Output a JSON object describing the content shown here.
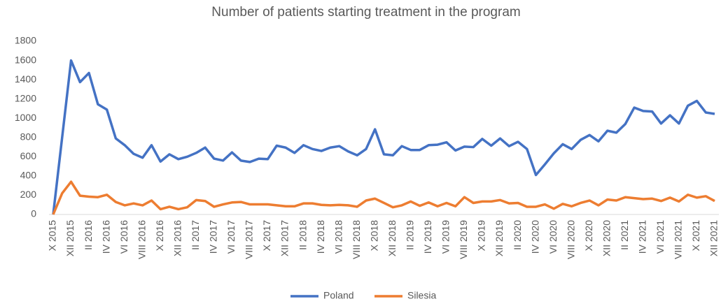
{
  "chart_data": {
    "type": "line",
    "title": "Number of patients starting treatment in the program",
    "categories": [
      "X 2015",
      null,
      "XII 2015",
      null,
      "II 2016",
      null,
      "IV 2016",
      null,
      "VI 2016",
      null,
      "VIII 2016",
      null,
      "X 2016",
      null,
      "XII 2016",
      null,
      "II 2017",
      null,
      "IV 2017",
      null,
      "VI 2017",
      null,
      "VIII 2017",
      null,
      "X 2017",
      null,
      "XII 2017",
      null,
      "II 2018",
      null,
      "IV 2018",
      null,
      "VI 2018",
      null,
      "VIII 2018",
      null,
      "X 2018",
      null,
      "XII 2018",
      null,
      "II 2019",
      null,
      "IV 2019",
      null,
      "VI 2019",
      null,
      "VIII 2019",
      null,
      "X 2019",
      null,
      "XII 2019",
      null,
      "II 2020",
      null,
      "IV 2020",
      null,
      "VI 2020",
      null,
      "VIII 2020",
      null,
      "X 2020",
      null,
      "XII 2020",
      null,
      "II 2021",
      null,
      "IV 2021",
      null,
      "VI 2021",
      null,
      "VIII 2021",
      null,
      "X 2021",
      null,
      "XII 2021"
    ],
    "series": [
      {
        "name": "Poland",
        "color": "#4472c4",
        "values": [
          0,
          800,
          1600,
          1375,
          1470,
          1145,
          1090,
          790,
          720,
          630,
          590,
          720,
          550,
          625,
          575,
          600,
          640,
          695,
          580,
          560,
          645,
          560,
          545,
          580,
          575,
          715,
          695,
          640,
          720,
          680,
          660,
          695,
          710,
          655,
          615,
          680,
          885,
          625,
          615,
          710,
          670,
          670,
          720,
          725,
          750,
          665,
          705,
          700,
          785,
          715,
          790,
          710,
          755,
          680,
          410,
          520,
          635,
          730,
          680,
          775,
          825,
          760,
          870,
          850,
          940,
          1110,
          1075,
          1070,
          945,
          1030,
          945,
          1130,
          1180,
          1060,
          1045
        ]
      },
      {
        "name": "Silesia",
        "color": "#ed7d31",
        "values": [
          0,
          220,
          340,
          195,
          185,
          180,
          205,
          130,
          95,
          115,
          95,
          145,
          55,
          80,
          55,
          75,
          150,
          140,
          80,
          105,
          125,
          130,
          105,
          105,
          105,
          95,
          85,
          85,
          115,
          115,
          100,
          95,
          100,
          95,
          80,
          145,
          165,
          120,
          75,
          95,
          135,
          90,
          125,
          85,
          120,
          85,
          180,
          120,
          135,
          135,
          150,
          115,
          120,
          80,
          80,
          105,
          60,
          110,
          85,
          120,
          145,
          95,
          155,
          145,
          180,
          170,
          160,
          165,
          140,
          175,
          135,
          205,
          175,
          190,
          140
        ]
      }
    ],
    "ylim": [
      0,
      1800
    ],
    "yticks": [
      0,
      200,
      400,
      600,
      800,
      1000,
      1200,
      1400,
      1600,
      1800
    ],
    "grid": false,
    "legend": "bottom"
  }
}
